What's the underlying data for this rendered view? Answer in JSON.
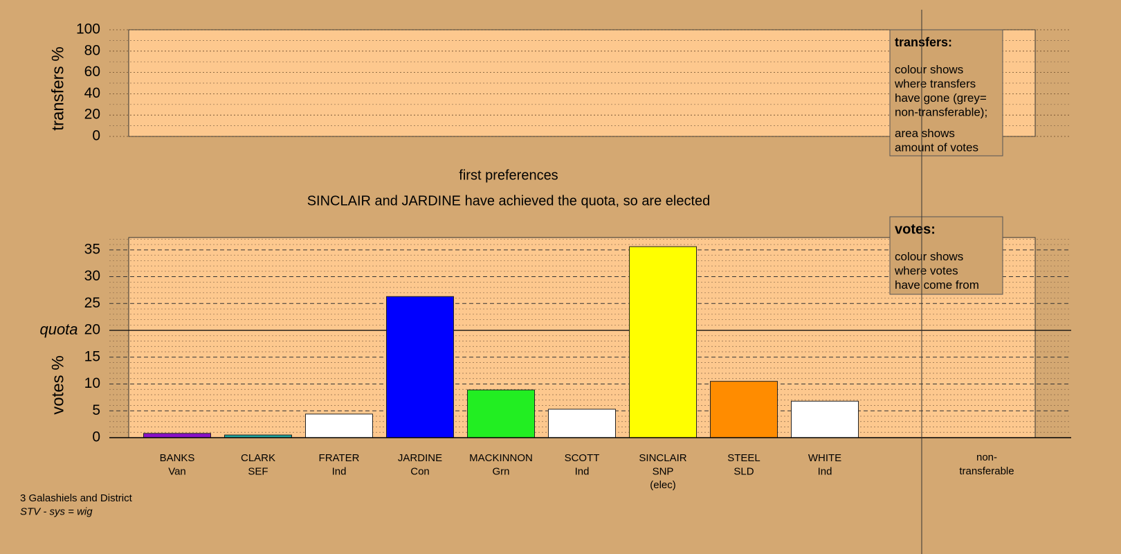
{
  "chart_data": [
    {
      "type": "bar",
      "ylabel": "transfers %",
      "ylim": [
        0,
        100
      ],
      "yticks": [
        0,
        20,
        40,
        60,
        80,
        100
      ],
      "minor_yticks": [
        10,
        30,
        50,
        70,
        90
      ],
      "legend": {
        "title": "transfers:",
        "lines": [
          [
            "colour shows",
            "where transfers",
            "have gone (grey=",
            "non-transferable);"
          ],
          [
            "area shows",
            "amount of votes"
          ]
        ]
      }
    },
    {
      "type": "bar",
      "title": "first preferences",
      "subtitle": "SINCLAIR and JARDINE have achieved the quota, so are elected",
      "ylabel": "votes %",
      "categories": [
        [
          "BANKS",
          "Van"
        ],
        [
          "CLARK",
          "SEF"
        ],
        [
          "FRATER",
          "Ind"
        ],
        [
          "JARDINE",
          "Con"
        ],
        [
          "MACKINNON",
          "Grn"
        ],
        [
          "SCOTT",
          "Ind"
        ],
        [
          "SINCLAIR",
          "SNP",
          "(elec)"
        ],
        [
          "STEEL",
          "SLD"
        ],
        [
          "WHITE",
          "Ind"
        ]
      ],
      "values": [
        0.8,
        0.5,
        4.4,
        26.3,
        8.9,
        5.3,
        35.6,
        10.5,
        6.8
      ],
      "colors": [
        "#8a10c8",
        "#20a8a0",
        "#ffffff",
        "#0000ff",
        "#22ee22",
        "#ffffff",
        "#ffff00",
        "#ff8c00",
        "#ffffff"
      ],
      "ylim": [
        0,
        37.3
      ],
      "yticks": [
        0,
        5,
        10,
        15,
        20,
        25,
        30,
        35
      ],
      "minor_yticks": [
        1,
        2,
        3,
        4,
        6,
        7,
        8,
        9,
        11,
        12,
        13,
        14,
        16,
        17,
        18,
        19,
        21,
        22,
        23,
        24,
        26,
        27,
        28,
        29,
        31,
        32,
        33,
        34,
        36,
        37
      ],
      "quota": {
        "value": 20,
        "label": "quota"
      },
      "extra_category": [
        "non-",
        "transferable"
      ],
      "legend": {
        "title": "votes:",
        "lines": [
          [
            "colour shows",
            "where votes",
            "have come from"
          ]
        ]
      }
    }
  ],
  "footer": [
    "3 Galashiels and District",
    "STV - sys = wig"
  ]
}
